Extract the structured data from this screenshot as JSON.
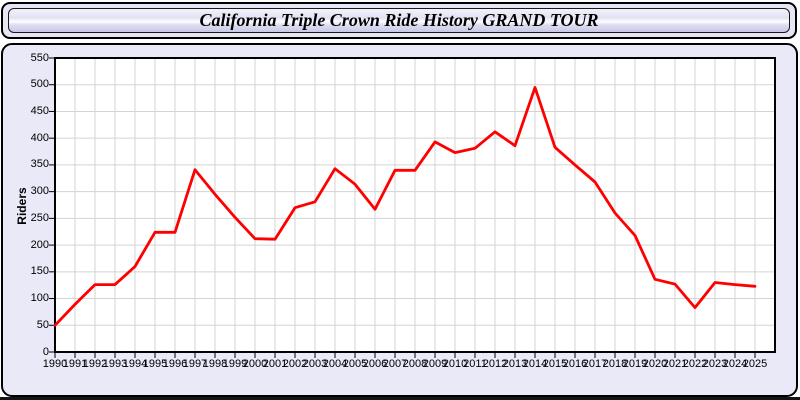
{
  "header": {
    "title": "California Triple Crown Ride History GRAND TOUR"
  },
  "colors": {
    "line": "#ff0000",
    "panel_background": "#e9e9f8",
    "plot_background": "#ffffff",
    "grid": "#d3d3d3",
    "axis": "#000000"
  },
  "chart_data": {
    "type": "line",
    "title": "California Triple Crown Ride History GRAND TOUR",
    "xlabel": "",
    "ylabel": "Riders",
    "legend_position": "none",
    "grid": true,
    "xlim": [
      1990,
      2026
    ],
    "ylim": [
      0,
      550
    ],
    "ytick_step": 50,
    "yticks": [
      0,
      50,
      100,
      150,
      200,
      250,
      300,
      350,
      400,
      450,
      500,
      550
    ],
    "x": [
      1990,
      1991,
      1992,
      1993,
      1994,
      1995,
      1996,
      1997,
      1998,
      1999,
      2000,
      2001,
      2002,
      2003,
      2004,
      2005,
      2006,
      2007,
      2008,
      2009,
      2010,
      2011,
      2012,
      2013,
      2014,
      2015,
      2016,
      2017,
      2018,
      2019,
      2020,
      2021,
      2022,
      2023,
      2024,
      2025
    ],
    "series": [
      {
        "name": "Riders",
        "color": "#ff0000",
        "values": [
          50,
          89,
          126,
          126,
          160,
          224,
          224,
          341,
          295,
          252,
          212,
          211,
          270,
          281,
          343,
          314,
          267,
          340,
          340,
          393,
          373,
          381,
          412,
          386,
          495,
          383,
          350,
          318,
          260,
          218,
          136,
          127,
          83,
          130,
          126,
          123
        ]
      }
    ]
  }
}
